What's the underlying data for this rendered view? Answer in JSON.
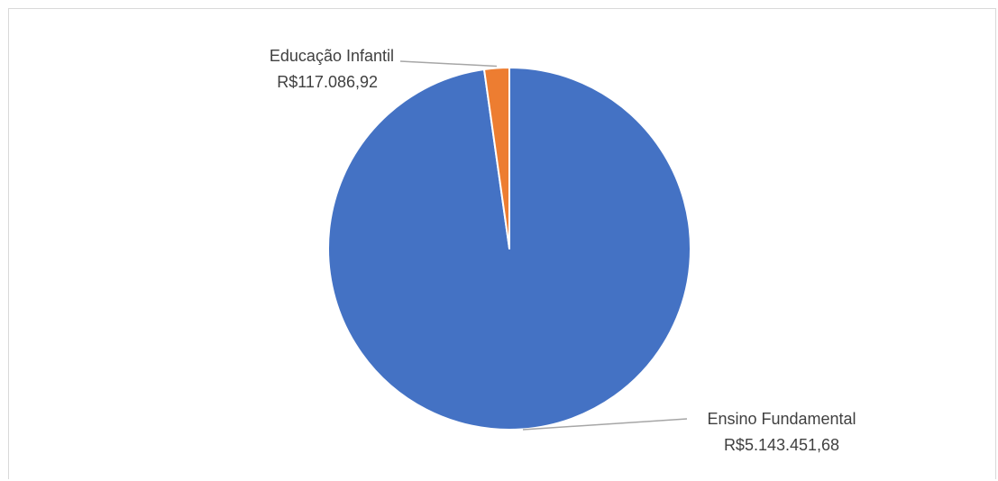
{
  "chart_data": {
    "type": "pie",
    "title": "",
    "slices": [
      {
        "name": "Ensino Fundamental",
        "label": "R$5.143.451,68",
        "value": 5143451.68,
        "color": "#4472C4"
      },
      {
        "name": "Educação Infantil",
        "label": "R$117.086,92",
        "value": 117086.92,
        "color": "#ED7D31"
      }
    ],
    "start_angle": "12 o'clock",
    "direction": "clockwise",
    "legend": "none",
    "leader_color": "#a6a6a6"
  }
}
